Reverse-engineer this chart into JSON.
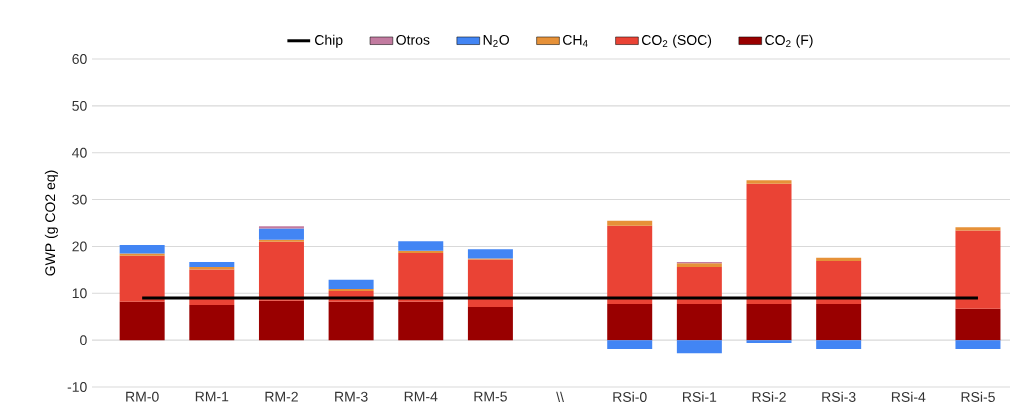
{
  "chart_data": {
    "type": "bar",
    "stacked": true,
    "ylabel": "GWP (g CO2 eq)",
    "categories": [
      "RM-0",
      "RM-1",
      "RM-2",
      "RM-3",
      "RM-4",
      "RM-5",
      "\\\\",
      "RSi-0",
      "RSi-1",
      "RSi-2",
      "RSi-3",
      "RSi-4",
      "RSi-5"
    ],
    "ylim": [
      -10,
      60
    ],
    "yticks": [
      -10,
      0,
      10,
      20,
      30,
      40,
      50,
      60
    ],
    "grid": "y",
    "legend": "top",
    "series": [
      {
        "name": "CO$_{2}$ (F)",
        "color": "#990000",
        "values": [
          8.2,
          7.5,
          8.4,
          8.2,
          8.2,
          7.1,
          null,
          7.7,
          7.7,
          7.7,
          7.7,
          null,
          6.7
        ]
      },
      {
        "name": "CO$_{2}$ (SOC)",
        "color": "#ea4335",
        "values": [
          9.8,
          7.6,
          12.6,
          2.3,
          10.4,
          10.1,
          null,
          16.7,
          7.9,
          25.7,
          9.2,
          null,
          16.7
        ]
      },
      {
        "name": "CH$_{4}$",
        "color": "#e69138",
        "values": [
          0.5,
          0.5,
          0.4,
          0.4,
          0.5,
          0.2,
          null,
          1.1,
          0.8,
          0.7,
          0.7,
          null,
          0.7
        ]
      },
      {
        "name": "N$_{2}$O",
        "color": "#4285f4",
        "values": [
          1.8,
          1.1,
          2.4,
          2.0,
          2.0,
          2.0,
          null,
          -1.9,
          -2.8,
          -0.6,
          -1.9,
          null,
          -1.9
        ]
      },
      {
        "name": "Otros",
        "color": "#c27ba0",
        "values": [
          null,
          null,
          0.5,
          null,
          null,
          null,
          null,
          null,
          0.3,
          null,
          null,
          null,
          null
        ]
      },
      {
        "name": "Chip",
        "type": "line",
        "color": "#000000",
        "values": [
          9,
          9,
          9,
          9,
          9,
          9,
          9,
          9,
          9,
          9,
          9,
          9,
          9
        ]
      }
    ]
  }
}
